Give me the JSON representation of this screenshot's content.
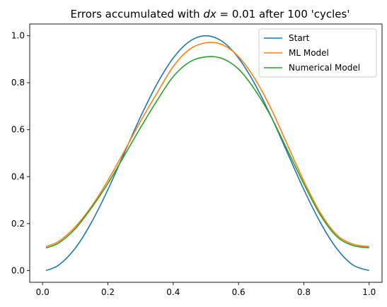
{
  "chart_data": {
    "type": "line",
    "title": "Errors accumulated with dx = 0.01 after 100 'cycles'",
    "title_parts": [
      "Errors accumulated with ",
      "dx",
      " = 0.01 after 100 'cycles'"
    ],
    "xlabel": "",
    "ylabel": "",
    "xlim": [
      -0.0395,
      1.0395
    ],
    "ylim": [
      -0.05,
      1.05
    ],
    "xticks": [
      0.0,
      0.2,
      0.4,
      0.6,
      0.8,
      1.0
    ],
    "xtick_labels": [
      "0.0",
      "0.2",
      "0.4",
      "0.6",
      "0.8",
      "1.0"
    ],
    "yticks": [
      0.0,
      0.2,
      0.4,
      0.6,
      0.8,
      1.0
    ],
    "ytick_labels": [
      "0.0",
      "0.2",
      "0.4",
      "0.6",
      "0.8",
      "1.0"
    ],
    "grid": false,
    "legend_position": "top-right",
    "x": [
      0.01,
      0.05,
      0.1,
      0.15,
      0.2,
      0.25,
      0.3,
      0.35,
      0.4,
      0.45,
      0.5,
      0.55,
      0.6,
      0.65,
      0.7,
      0.75,
      0.8,
      0.85,
      0.9,
      0.95,
      1.0
    ],
    "series": [
      {
        "name": "Start",
        "color": "#1f77b4",
        "values": [
          0.0,
          0.024,
          0.095,
          0.206,
          0.345,
          0.5,
          0.655,
          0.794,
          0.905,
          0.976,
          1.0,
          0.976,
          0.905,
          0.794,
          0.655,
          0.5,
          0.345,
          0.206,
          0.095,
          0.024,
          0.0
        ]
      },
      {
        "name": "ML Model",
        "color": "#ff7f0e",
        "values": [
          0.102,
          0.125,
          0.186,
          0.274,
          0.384,
          0.508,
          0.636,
          0.755,
          0.869,
          0.942,
          0.97,
          0.962,
          0.911,
          0.817,
          0.688,
          0.535,
          0.381,
          0.247,
          0.153,
          0.113,
          0.102
        ]
      },
      {
        "name": "Numerical Model",
        "color": "#2ca02c",
        "values": [
          0.096,
          0.118,
          0.178,
          0.268,
          0.371,
          0.489,
          0.609,
          0.723,
          0.826,
          0.888,
          0.91,
          0.903,
          0.858,
          0.77,
          0.654,
          0.512,
          0.369,
          0.238,
          0.146,
          0.107,
          0.097
        ]
      }
    ]
  }
}
